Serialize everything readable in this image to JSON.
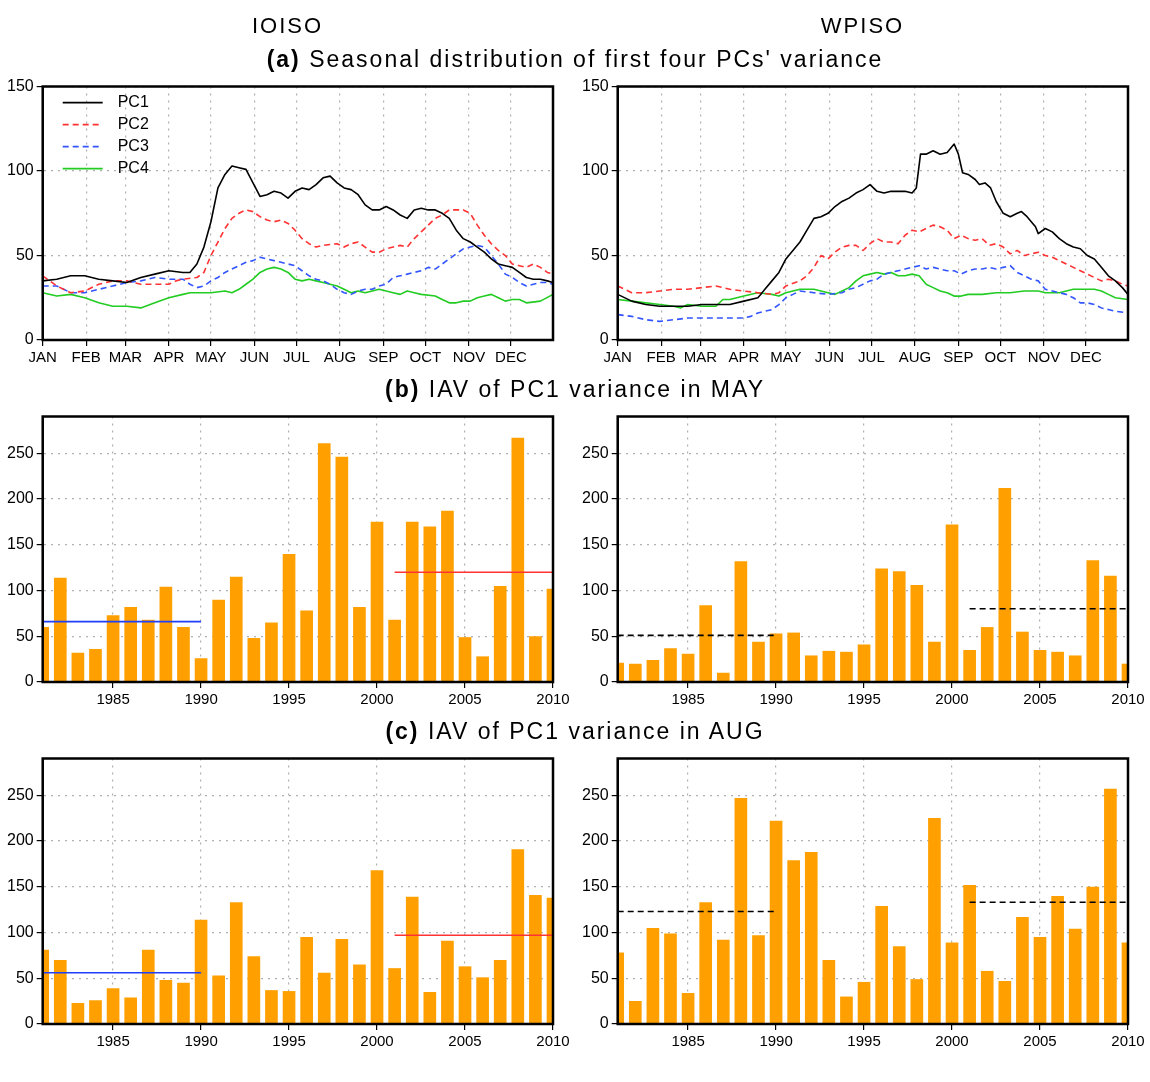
{
  "chart_data": [
    {
      "type": "line",
      "title": "(a) Seasonal distribution of first four PCs' variance",
      "subtitle": "IOISO",
      "xlim": [
        "--01-01",
        "--12-31"
      ],
      "ylim": [
        0,
        150
      ],
      "yticks": [
        0,
        50,
        100,
        150
      ],
      "grid": true,
      "marker": "none",
      "legend": "top left",
      "xticks": [
        {
          "value": "--01-01",
          "label": "JAN"
        },
        {
          "value": "--02-01",
          "label": "FEB"
        },
        {
          "value": "--03-01",
          "label": "MAR"
        },
        {
          "value": "--04-01",
          "label": "APR"
        },
        {
          "value": "--05-01",
          "label": "MAY"
        },
        {
          "value": "--06-01",
          "label": "JUN"
        },
        {
          "value": "--07-01",
          "label": "JUL"
        },
        {
          "value": "--08-01",
          "label": "AUG"
        },
        {
          "value": "--09-01",
          "label": "SEP"
        },
        {
          "value": "--10-01",
          "label": "OCT"
        },
        {
          "value": "--11-01",
          "label": "NOV"
        },
        {
          "value": "--12-01",
          "label": "DEC"
        }
      ],
      "x": [
        "--01-01",
        "--01-11",
        "--01-21",
        "--01-31",
        "--02-10",
        "--02-20",
        "--03-02",
        "--03-12",
        "--03-22",
        "--04-01",
        "--04-11",
        "--04-16",
        "--04-21",
        "--04-26",
        "--05-01",
        "--05-06",
        "--05-11",
        "--05-16",
        "--05-21",
        "--05-26",
        "--05-31",
        "--06-05",
        "--06-10",
        "--06-15",
        "--06-20",
        "--06-25",
        "--06-30",
        "--07-05",
        "--07-10",
        "--07-15",
        "--07-20",
        "--07-25",
        "--07-30",
        "--08-04",
        "--08-09",
        "--08-14",
        "--08-19",
        "--08-24",
        "--08-29",
        "--09-03",
        "--09-08",
        "--09-13",
        "--09-18",
        "--09-23",
        "--09-28",
        "--10-03",
        "--10-08",
        "--10-13",
        "--10-18",
        "--10-23",
        "--10-28",
        "--11-02",
        "--11-07",
        "--11-12",
        "--11-17",
        "--11-22",
        "--11-27",
        "--12-02",
        "--12-07",
        "--12-12",
        "--12-17",
        "--12-22",
        "--12-27",
        "--12-31"
      ],
      "series": [
        {
          "name": "PC1",
          "color": "#000000",
          "line_style": "solid",
          "values": [
            35,
            36,
            38,
            38,
            36,
            35,
            34,
            37,
            39,
            41,
            40,
            40,
            45,
            55,
            70,
            90,
            98,
            103,
            102,
            101,
            93,
            85,
            86,
            88,
            87,
            84,
            88,
            90,
            89,
            92,
            96,
            97,
            93,
            90,
            89,
            86,
            80,
            77,
            77,
            79,
            77,
            74,
            72,
            77,
            78,
            77,
            77,
            75,
            72,
            65,
            60,
            58,
            55,
            52,
            48,
            45,
            44,
            43,
            40,
            37,
            36,
            36,
            35,
            34
          ]
        },
        {
          "name": "PC2",
          "color": "#ff3333",
          "line_style": "dashed",
          "x": [
            "--01-01",
            "--01-11",
            "--01-21",
            "--01-31",
            "--02-10",
            "--02-20",
            "--03-02",
            "--03-12",
            "--03-22",
            "--04-01",
            "--04-06",
            "--04-11",
            "--04-21",
            "--04-26",
            "--05-01",
            "--05-06",
            "--05-11",
            "--05-16",
            "--05-21",
            "--05-26",
            "--05-31",
            "--06-05",
            "--06-10",
            "--06-15",
            "--06-20",
            "--06-25",
            "--06-30",
            "--07-05",
            "--07-10",
            "--07-15",
            "--07-20",
            "--07-30",
            "--08-04",
            "--08-09",
            "--08-14",
            "--08-19",
            "--08-24",
            "--08-29",
            "--09-03",
            "--09-08",
            "--09-13",
            "--09-18",
            "--09-23",
            "--09-28",
            "--10-03",
            "--10-08",
            "--10-13",
            "--10-18",
            "--10-23",
            "--10-28",
            "--11-02",
            "--11-07",
            "--11-12",
            "--11-17",
            "--11-22",
            "--11-27",
            "--12-02",
            "--12-07",
            "--12-12",
            "--12-17",
            "--12-22",
            "--12-27",
            "--12-31"
          ],
          "values": [
            38,
            32,
            28,
            29,
            33,
            35,
            35,
            33,
            33,
            33,
            35,
            36,
            37,
            40,
            50,
            58,
            66,
            72,
            75,
            77,
            76,
            73,
            71,
            70,
            71,
            69,
            65,
            60,
            57,
            55,
            56,
            57,
            55,
            57,
            58,
            55,
            52,
            52,
            54,
            55,
            56,
            55,
            60,
            64,
            68,
            72,
            74,
            77,
            77,
            77,
            75,
            68,
            62,
            57,
            53,
            50,
            45,
            44,
            43,
            45,
            43,
            40,
            39
          ]
        },
        {
          "name": "PC3",
          "color": "#3355ff",
          "line_style": "dashed",
          "values": [
            32,
            32,
            28,
            28,
            30,
            32,
            34,
            35,
            37,
            36,
            36,
            33,
            31,
            32,
            35,
            37,
            40,
            42,
            44,
            46,
            47,
            49,
            48,
            47,
            46,
            45,
            44,
            41,
            38,
            36,
            35,
            33,
            30,
            28,
            27,
            29,
            30,
            30,
            32,
            33,
            37,
            38,
            39,
            40,
            41,
            43,
            42,
            45,
            48,
            51,
            54,
            55,
            56,
            55,
            50,
            45,
            39,
            37,
            34,
            32,
            33,
            34,
            34,
            33
          ]
        },
        {
          "name": "PC4",
          "color": "#22cc22",
          "line_style": "solid",
          "x": [
            "--01-01",
            "--01-11",
            "--01-21",
            "--01-31",
            "--02-10",
            "--02-20",
            "--03-02",
            "--03-12",
            "--03-22",
            "--04-01",
            "--04-11",
            "--04-16",
            "--04-21",
            "--05-01",
            "--05-11",
            "--05-16",
            "--05-21",
            "--05-26",
            "--05-31",
            "--06-05",
            "--06-10",
            "--06-15",
            "--06-20",
            "--06-25",
            "--06-30",
            "--07-05",
            "--07-10",
            "--07-15",
            "--07-20",
            "--07-30",
            "--08-04",
            "--08-09",
            "--08-14",
            "--08-19",
            "--08-29",
            "--09-08",
            "--09-13",
            "--09-18",
            "--09-23",
            "--09-28",
            "--10-08",
            "--10-13",
            "--10-18",
            "--10-23",
            "--10-28",
            "--11-02",
            "--11-07",
            "--11-12",
            "--11-17",
            "--11-22",
            "--11-27",
            "--12-02",
            "--12-07",
            "--12-12",
            "--12-22",
            "--12-31"
          ],
          "values": [
            28,
            26,
            27,
            25,
            22,
            20,
            20,
            19,
            22,
            25,
            27,
            28,
            28,
            28,
            29,
            28,
            30,
            33,
            36,
            40,
            42,
            43,
            42,
            40,
            36,
            35,
            36,
            35,
            34,
            32,
            30,
            28,
            29,
            28,
            30,
            28,
            27,
            29,
            28,
            27,
            26,
            24,
            22,
            22,
            23,
            23,
            25,
            26,
            27,
            25,
            23,
            24,
            24,
            22,
            23,
            27
          ]
        }
      ]
    },
    {
      "type": "line",
      "subtitle": "WPISO",
      "xlim": [
        "--01-01",
        "--12-31"
      ],
      "ylim": [
        0,
        150
      ],
      "yticks": [
        0,
        50,
        100,
        150
      ],
      "grid": true,
      "marker": "none",
      "xticks": [
        {
          "value": "--01-01",
          "label": "JAN"
        },
        {
          "value": "--02-01",
          "label": "FEB"
        },
        {
          "value": "--03-01",
          "label": "MAR"
        },
        {
          "value": "--04-01",
          "label": "APR"
        },
        {
          "value": "--05-01",
          "label": "MAY"
        },
        {
          "value": "--06-01",
          "label": "JUN"
        },
        {
          "value": "--07-01",
          "label": "JUL"
        },
        {
          "value": "--08-01",
          "label": "AUG"
        },
        {
          "value": "--09-01",
          "label": "SEP"
        },
        {
          "value": "--10-01",
          "label": "OCT"
        },
        {
          "value": "--11-01",
          "label": "NOV"
        },
        {
          "value": "--12-01",
          "label": "DEC"
        }
      ],
      "series": [
        {
          "color": "#000000",
          "line_style": "solid",
          "x": [
            "--01-01",
            "--01-11",
            "--01-21",
            "--01-31",
            "--02-10",
            "--02-20",
            "--03-02",
            "--03-12",
            "--03-22",
            "--04-01",
            "--04-11",
            "--04-16",
            "--04-21",
            "--04-26",
            "--05-01",
            "--05-06",
            "--05-11",
            "--05-16",
            "--05-21",
            "--05-26",
            "--05-31",
            "--06-05",
            "--06-10",
            "--06-15",
            "--06-20",
            "--06-25",
            "--06-30",
            "--07-05",
            "--07-10",
            "--07-15",
            "--07-20",
            "--07-25",
            "--07-30",
            "--08-02",
            "--08-05",
            "--08-09",
            "--08-14",
            "--08-19",
            "--08-24",
            "--08-29",
            "--09-01",
            "--09-04",
            "--09-08",
            "--09-13",
            "--09-16",
            "--09-20",
            "--09-24",
            "--09-28",
            "--10-03",
            "--10-08",
            "--10-13",
            "--10-16",
            "--10-20",
            "--10-26",
            "--10-28",
            "--11-02",
            "--11-07",
            "--11-12",
            "--11-17",
            "--11-22",
            "--11-27",
            "--12-02",
            "--12-07",
            "--12-12",
            "--12-17",
            "--12-22",
            "--12-27",
            "--12-31"
          ],
          "values": [
            27,
            23,
            21,
            20,
            20,
            20,
            21,
            21,
            21,
            23,
            25,
            30,
            35,
            40,
            48,
            53,
            58,
            65,
            72,
            73,
            75,
            79,
            82,
            84,
            87,
            89,
            92,
            88,
            87,
            88,
            88,
            88,
            87,
            90,
            110,
            110,
            112,
            110,
            111,
            116,
            110,
            99,
            98,
            95,
            92,
            93,
            90,
            82,
            75,
            73,
            75,
            76,
            73,
            67,
            63,
            66,
            64,
            60,
            57,
            55,
            54,
            50,
            48,
            43,
            38,
            35,
            31,
            27
          ]
        },
        {
          "color": "#ff3333",
          "line_style": "dashed",
          "x": [
            "--01-01",
            "--01-11",
            "--01-21",
            "--01-31",
            "--02-10",
            "--02-20",
            "--03-02",
            "--03-12",
            "--03-22",
            "--04-01",
            "--04-11",
            "--04-21",
            "--04-26",
            "--05-01",
            "--05-11",
            "--05-16",
            "--05-21",
            "--05-26",
            "--05-31",
            "--06-05",
            "--06-10",
            "--06-15",
            "--06-20",
            "--06-25",
            "--06-30",
            "--07-05",
            "--07-10",
            "--07-15",
            "--07-20",
            "--07-25",
            "--07-30",
            "--08-04",
            "--08-09",
            "--08-14",
            "--08-19",
            "--08-24",
            "--08-29",
            "--09-03",
            "--09-08",
            "--09-13",
            "--09-18",
            "--09-23",
            "--09-28",
            "--10-03",
            "--10-08",
            "--10-13",
            "--10-18",
            "--10-23",
            "--10-28",
            "--11-02",
            "--11-07",
            "--11-12",
            "--11-17",
            "--11-22",
            "--11-27",
            "--12-02",
            "--12-07",
            "--12-12",
            "--12-17",
            "--12-22",
            "--12-27",
            "--12-31"
          ],
          "values": [
            32,
            28,
            28,
            29,
            30,
            30,
            31,
            32,
            30,
            29,
            28,
            27,
            28,
            32,
            35,
            38,
            43,
            50,
            48,
            52,
            55,
            56,
            56,
            53,
            57,
            60,
            58,
            58,
            57,
            62,
            65,
            64,
            66,
            68,
            67,
            65,
            60,
            62,
            60,
            59,
            60,
            56,
            57,
            55,
            51,
            53,
            50,
            51,
            52,
            50,
            49,
            47,
            45,
            43,
            41,
            39,
            37,
            35,
            36,
            35,
            33,
            32
          ]
        },
        {
          "color": "#3355ff",
          "line_style": "dashed",
          "x": [
            "--01-01",
            "--01-11",
            "--01-21",
            "--01-31",
            "--02-10",
            "--02-20",
            "--03-02",
            "--03-12",
            "--03-22",
            "--04-01",
            "--04-06",
            "--04-11",
            "--04-21",
            "--04-26",
            "--05-01",
            "--05-06",
            "--05-11",
            "--05-21",
            "--05-31",
            "--06-10",
            "--06-15",
            "--06-20",
            "--06-25",
            "--06-30",
            "--07-05",
            "--07-10",
            "--07-15",
            "--07-20",
            "--07-25",
            "--07-30",
            "--08-04",
            "--08-09",
            "--08-14",
            "--08-19",
            "--08-24",
            "--08-29",
            "--09-03",
            "--09-08",
            "--09-13",
            "--09-18",
            "--09-23",
            "--09-28",
            "--10-03",
            "--10-08",
            "--10-13",
            "--10-18",
            "--10-23",
            "--10-28",
            "--11-02",
            "--11-07",
            "--11-12",
            "--11-17",
            "--11-22",
            "--11-27",
            "--12-02",
            "--12-07",
            "--12-12",
            "--12-17",
            "--12-22",
            "--12-31"
          ],
          "values": [
            15,
            14,
            12,
            11,
            12,
            13,
            13,
            13,
            13,
            13,
            14,
            16,
            18,
            21,
            25,
            27,
            29,
            28,
            27,
            28,
            30,
            31,
            33,
            35,
            36,
            39,
            40,
            41,
            42,
            43,
            44,
            42,
            43,
            42,
            41,
            41,
            39,
            41,
            42,
            42,
            43,
            42,
            43,
            44,
            40,
            38,
            36,
            35,
            30,
            29,
            28,
            27,
            25,
            22,
            22,
            21,
            19,
            18,
            17,
            16
          ]
        },
        {
          "color": "#22cc22",
          "line_style": "solid",
          "x": [
            "--01-01",
            "--01-11",
            "--01-21",
            "--01-31",
            "--02-10",
            "--02-15",
            "--02-20",
            "--03-02",
            "--03-12",
            "--03-17",
            "--03-22",
            "--04-01",
            "--04-11",
            "--04-21",
            "--04-26",
            "--05-01",
            "--05-11",
            "--05-21",
            "--05-31",
            "--06-05",
            "--06-10",
            "--06-15",
            "--06-20",
            "--06-25",
            "--06-30",
            "--07-05",
            "--07-10",
            "--07-15",
            "--07-20",
            "--07-25",
            "--07-30",
            "--08-04",
            "--08-09",
            "--08-14",
            "--08-19",
            "--08-24",
            "--08-29",
            "--09-03",
            "--09-08",
            "--09-18",
            "--09-28",
            "--10-08",
            "--10-18",
            "--10-28",
            "--11-02",
            "--11-07",
            "--11-12",
            "--11-17",
            "--11-22",
            "--11-27",
            "--12-07",
            "--12-12",
            "--12-17",
            "--12-22",
            "--12-31"
          ],
          "values": [
            24,
            23,
            22,
            21,
            20,
            19,
            21,
            20,
            20,
            24,
            24,
            26,
            28,
            27,
            26,
            28,
            30,
            30,
            28,
            27,
            29,
            31,
            35,
            38,
            39,
            40,
            39,
            40,
            38,
            38,
            39,
            38,
            33,
            31,
            29,
            28,
            26,
            26,
            27,
            27,
            28,
            28,
            29,
            29,
            28,
            28,
            28,
            29,
            30,
            30,
            30,
            29,
            27,
            25,
            24
          ]
        }
      ]
    },
    {
      "type": "bar",
      "title": "(b) IAV of PC1 variance in MAY",
      "xlim": [
        1981,
        2010
      ],
      "xticks": [
        1985,
        1990,
        1995,
        2000,
        2005,
        2010
      ],
      "ylim": [
        0,
        290
      ],
      "yticks": [
        0,
        50,
        100,
        150,
        200,
        250
      ],
      "grid": true,
      "marker": "none",
      "x": [
        1981,
        1982,
        1983,
        1984,
        1985,
        1986,
        1987,
        1988,
        1989,
        1990,
        1991,
        1992,
        1993,
        1994,
        1995,
        1996,
        1997,
        1998,
        1999,
        2000,
        2001,
        2002,
        2003,
        2004,
        2005,
        2006,
        2007,
        2008,
        2009,
        2010
      ],
      "series": [
        {
          "color": "#ffa000",
          "values": [
            60,
            114,
            32,
            36,
            73,
            82,
            68,
            104,
            60,
            26,
            90,
            115,
            48,
            65,
            140,
            78,
            261,
            246,
            82,
            175,
            68,
            175,
            170,
            187,
            49,
            28,
            105,
            267,
            50,
            102
          ]
        },
        {
          "type": "line",
          "color": "#1f3fff",
          "line_style": "solid",
          "x": [
            1981,
            1990
          ],
          "values": [
            66,
            66
          ]
        },
        {
          "type": "line",
          "color": "#ff3333",
          "line_style": "solid",
          "x": [
            2001,
            2010
          ],
          "values": [
            120,
            120
          ]
        }
      ]
    },
    {
      "type": "bar",
      "xlim": [
        1981,
        2010
      ],
      "xticks": [
        1985,
        1990,
        1995,
        2000,
        2005,
        2010
      ],
      "ylim": [
        0,
        290
      ],
      "yticks": [
        0,
        50,
        100,
        150,
        200,
        250
      ],
      "grid": true,
      "marker": "none",
      "x": [
        1981,
        1982,
        1983,
        1984,
        1985,
        1986,
        1987,
        1988,
        1989,
        1990,
        1991,
        1992,
        1993,
        1994,
        1995,
        1996,
        1997,
        1998,
        1999,
        2000,
        2001,
        2002,
        2003,
        2004,
        2005,
        2006,
        2007,
        2008,
        2009,
        2010
      ],
      "series": [
        {
          "color": "#ffa000",
          "values": [
            21,
            20,
            24,
            37,
            31,
            84,
            10,
            132,
            44,
            53,
            54,
            29,
            34,
            33,
            41,
            124,
            121,
            106,
            44,
            172,
            35,
            60,
            212,
            55,
            35,
            33,
            29,
            133,
            116,
            20
          ]
        },
        {
          "type": "line",
          "color": "#000000",
          "line_style": "dashed",
          "x": [
            1981,
            1990
          ],
          "values": [
            51,
            51
          ]
        },
        {
          "type": "line",
          "color": "#000000",
          "line_style": "dashed",
          "x": [
            2001,
            2010
          ],
          "values": [
            80,
            80
          ]
        }
      ]
    },
    {
      "type": "bar",
      "title": "(c) IAV of PC1 variance in AUG",
      "xlim": [
        1981,
        2010
      ],
      "xticks": [
        1985,
        1990,
        1995,
        2000,
        2005,
        2010
      ],
      "ylim": [
        0,
        290
      ],
      "yticks": [
        0,
        50,
        100,
        150,
        200,
        250
      ],
      "grid": true,
      "marker": "none",
      "x": [
        1981,
        1982,
        1983,
        1984,
        1985,
        1986,
        1987,
        1988,
        1989,
        1990,
        1991,
        1992,
        1993,
        1994,
        1995,
        1996,
        1997,
        1998,
        1999,
        2000,
        2001,
        2002,
        2003,
        2004,
        2005,
        2006,
        2007,
        2008,
        2009,
        2010
      ],
      "series": [
        {
          "color": "#ffa000",
          "values": [
            81,
            70,
            23,
            26,
            39,
            29,
            81,
            48,
            45,
            114,
            53,
            133,
            74,
            37,
            36,
            95,
            56,
            93,
            65,
            168,
            61,
            139,
            35,
            91,
            63,
            51,
            70,
            191,
            141,
            138
          ]
        },
        {
          "type": "line",
          "color": "#1f3fff",
          "line_style": "solid",
          "x": [
            1981,
            1990
          ],
          "values": [
            56,
            56
          ]
        },
        {
          "type": "line",
          "color": "#ff3333",
          "line_style": "solid",
          "x": [
            2001,
            2010
          ],
          "values": [
            97,
            97
          ]
        }
      ]
    },
    {
      "type": "bar",
      "xlim": [
        1981,
        2010
      ],
      "xticks": [
        1985,
        1990,
        1995,
        2000,
        2005,
        2010
      ],
      "ylim": [
        0,
        290
      ],
      "yticks": [
        0,
        50,
        100,
        150,
        200,
        250
      ],
      "grid": true,
      "marker": "none",
      "x": [
        1981,
        1982,
        1983,
        1984,
        1985,
        1986,
        1987,
        1988,
        1989,
        1990,
        1991,
        1992,
        1993,
        1994,
        1995,
        1996,
        1997,
        1998,
        1999,
        2000,
        2001,
        2002,
        2003,
        2004,
        2005,
        2006,
        2007,
        2008,
        2009,
        2010
      ],
      "series": [
        {
          "color": "#ffa000",
          "values": [
            78,
            25,
            105,
            99,
            34,
            133,
            92,
            247,
            97,
            222,
            179,
            188,
            70,
            30,
            46,
            129,
            85,
            49,
            225,
            89,
            152,
            58,
            47,
            117,
            95,
            140,
            104,
            150,
            257,
            89
          ]
        },
        {
          "type": "line",
          "color": "#000000",
          "line_style": "dashed",
          "x": [
            1981,
            1990
          ],
          "values": [
            123,
            123
          ]
        },
        {
          "type": "line",
          "color": "#000000",
          "line_style": "dashed",
          "x": [
            2001,
            2010
          ],
          "values": [
            133,
            133
          ]
        }
      ]
    }
  ]
}
